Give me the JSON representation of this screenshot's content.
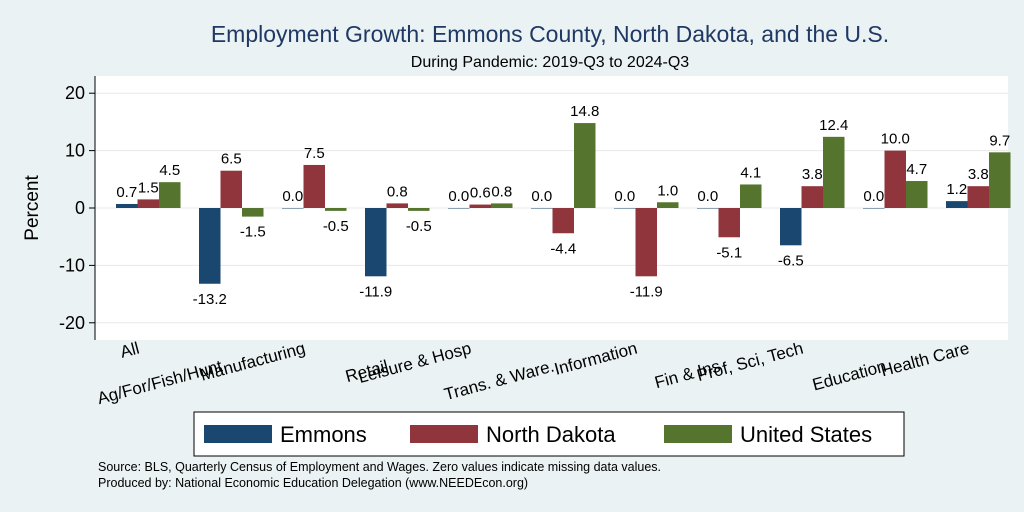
{
  "colors": {
    "background": "#eaf2f3",
    "plot_background": "#ffffff",
    "gridline": "#e8e8e8",
    "series": [
      "#1a476f",
      "#90353b",
      "#55752f"
    ]
  },
  "chart_data": {
    "type": "bar",
    "title": "Employment Growth: Emmons County, North Dakota, and the U.S.",
    "subtitle": "During Pandemic: 2019-Q3 to 2024-Q3",
    "ylabel": "Percent",
    "ylim": [
      -23,
      23
    ],
    "yticks": [
      -20,
      -10,
      0,
      10,
      20
    ],
    "grid": true,
    "legend_position": "bottom",
    "categories": [
      "All",
      "Ag/For/Fish/Hunt",
      "Manufacturing",
      "Retail",
      "Leisure & Hosp",
      "Trans. & Ware.",
      "Information",
      "Fin & Ins",
      "Prof, Sci, Tech",
      "Education",
      "Health Care"
    ],
    "series": [
      {
        "name": "Emmons",
        "values": [
          0.7,
          -13.2,
          0.0,
          -11.9,
          0.0,
          0.0,
          0.0,
          0.0,
          -6.5,
          0.0,
          1.2
        ]
      },
      {
        "name": "North Dakota",
        "values": [
          1.5,
          6.5,
          7.5,
          0.8,
          0.6,
          -4.4,
          -11.9,
          -5.1,
          3.8,
          10.0,
          3.8
        ]
      },
      {
        "name": "United States",
        "values": [
          4.5,
          -1.5,
          -0.5,
          -0.5,
          0.8,
          14.8,
          1.0,
          4.1,
          12.4,
          4.7,
          9.7
        ]
      }
    ]
  },
  "footer": {
    "source": "Source: BLS, Quarterly Census of Employment and Wages. Zero values indicate missing data values.",
    "produced_by": "Produced by: National Economic Education Delegation (www.NEEDEcon.org)"
  }
}
